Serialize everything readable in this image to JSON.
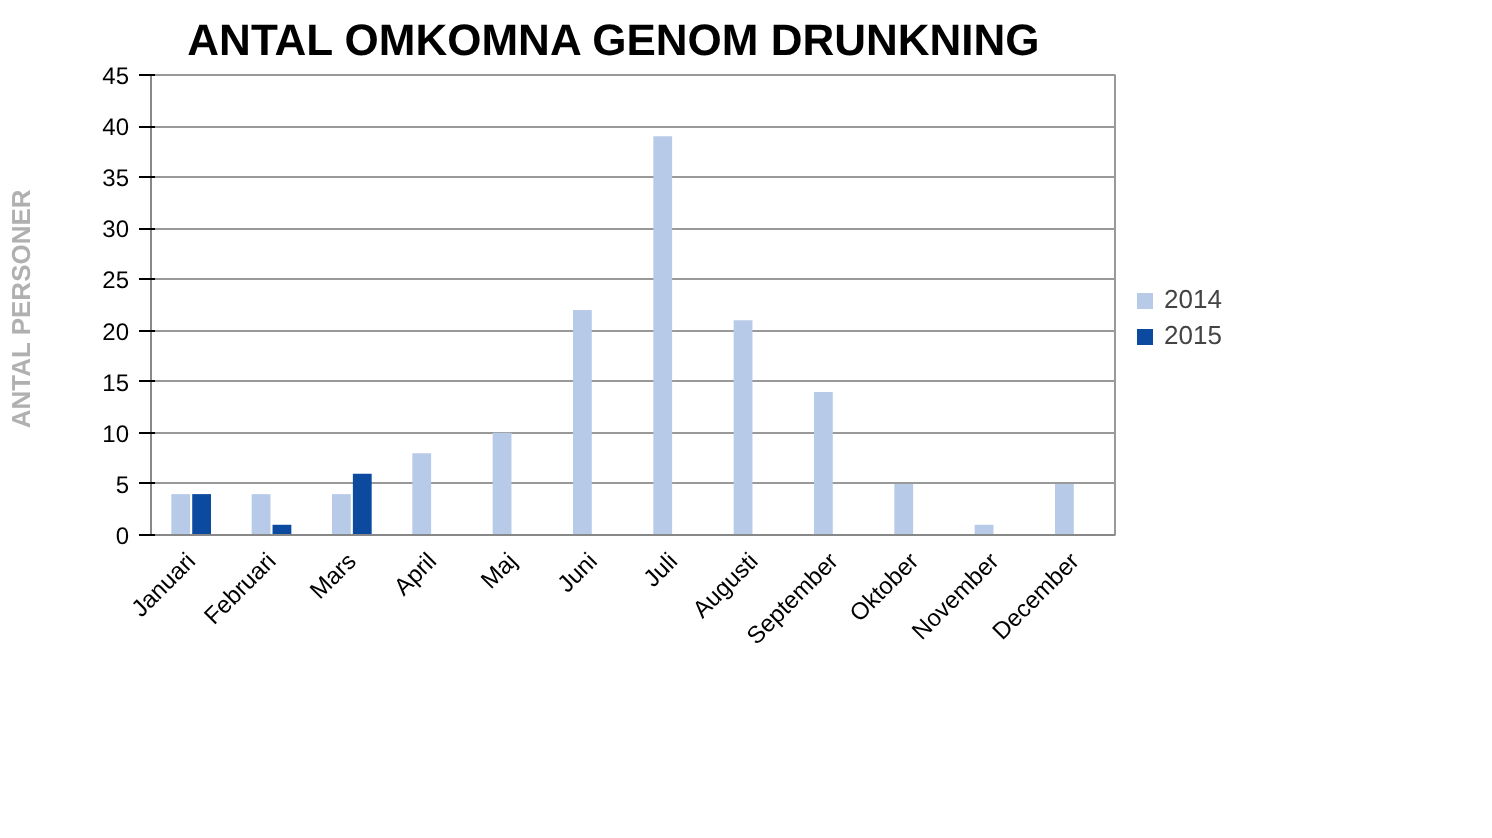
{
  "chart_data": {
    "type": "bar",
    "title": "ANTAL  OMKOMNA  GENOM  DRUNKNING",
    "ylabel": "ANTAL  PERSONER",
    "categories": [
      "Januari",
      "Februari",
      "Mars",
      "April",
      "Maj",
      "Juni",
      "Juli",
      "Augusti",
      "September",
      "Oktober",
      "November",
      "December"
    ],
    "series": [
      {
        "name": "2014",
        "color": "#b7cbe9",
        "values": [
          4,
          4,
          4,
          8,
          10,
          22,
          39,
          21,
          14,
          5,
          1,
          5
        ]
      },
      {
        "name": "2015",
        "color": "#0b4a9e",
        "values": [
          4,
          1,
          6,
          null,
          null,
          null,
          null,
          null,
          null,
          null,
          null,
          null
        ]
      }
    ],
    "ylim": [
      0,
      45
    ],
    "yticks": [
      0,
      5,
      10,
      15,
      20,
      25,
      30,
      35,
      40,
      45
    ],
    "grid": "y",
    "legend": "right"
  }
}
